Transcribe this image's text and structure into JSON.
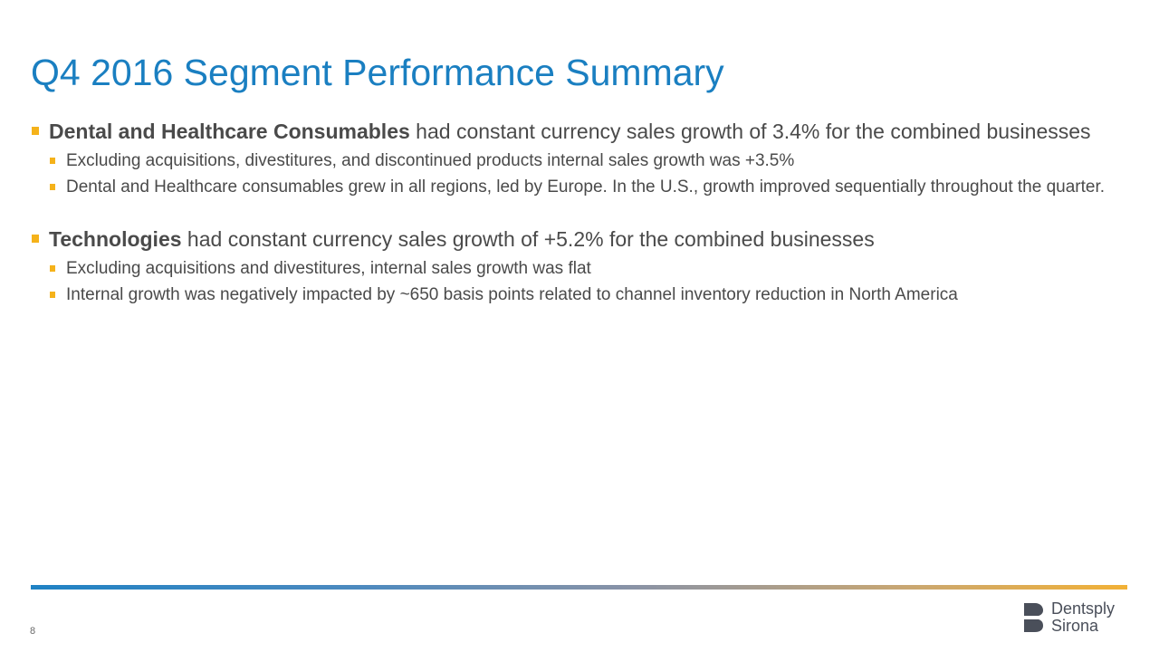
{
  "title": "Q4 2016 Segment Performance Summary",
  "sections": [
    {
      "bold": "Dental and Healthcare Consumables",
      "text": " had constant currency sales growth of 3.4% for the combined businesses",
      "subs": [
        "Excluding acquisitions, divestitures, and discontinued products internal sales growth was +3.5%",
        "Dental and Healthcare consumables grew in all regions, led by Europe.  In the U.S., growth improved sequentially throughout the quarter."
      ]
    },
    {
      "bold": "Technologies",
      "text": " had constant currency sales growth of +5.2% for the combined businesses",
      "subs": [
        "Excluding acquisitions and divestitures, internal sales growth was flat",
        "Internal growth was negatively impacted by ~650 basis points related to channel inventory reduction in North America"
      ]
    }
  ],
  "footer": {
    "page_number": "8",
    "logo_line1": "Dentsply",
    "logo_line2": "Sirona"
  },
  "colors": {
    "title": "#1a7fc1",
    "bullet": "#f5b21a",
    "body_text": "#4a4a4a"
  }
}
